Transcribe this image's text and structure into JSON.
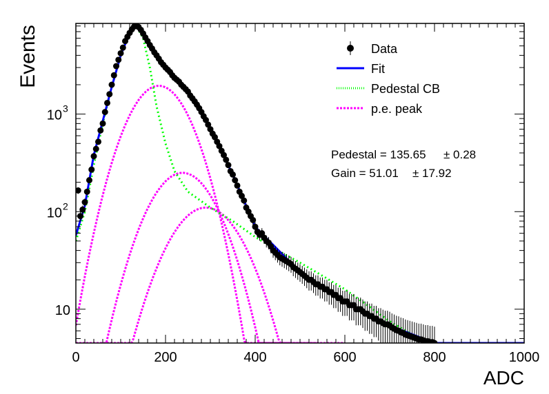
{
  "chart_data": {
    "type": "scatter",
    "title": "",
    "xlabel": "ADC",
    "ylabel": "Events",
    "xlim": [
      0,
      1000
    ],
    "ylim": [
      4.5,
      8500
    ],
    "y_scale": "log",
    "grid": false,
    "x_ticks": [
      {
        "value": 0,
        "label": "0"
      },
      {
        "value": 200,
        "label": "200"
      },
      {
        "value": 400,
        "label": "400"
      },
      {
        "value": 600,
        "label": "600"
      },
      {
        "value": 800,
        "label": "800"
      },
      {
        "value": 1000,
        "label": "1000"
      }
    ],
    "y_ticks": [
      {
        "value": 10,
        "label": "10"
      },
      {
        "value": 100,
        "label": "10",
        "exponent": "2"
      },
      {
        "value": 1000,
        "label": "10",
        "exponent": "3"
      }
    ],
    "legend": {
      "position": "top-right",
      "entries": [
        {
          "label": "Data",
          "kind": "marker"
        },
        {
          "label": "Fit",
          "kind": "solid"
        },
        {
          "label": "Pedestal CB",
          "kind": "dotted"
        },
        {
          "label": "p.e. peak",
          "kind": "dashed"
        }
      ]
    },
    "annotations": [
      "Pedestal = 135.65",
      "± 0.28",
      "Gain = 51.01",
      "± 17.92"
    ],
    "colors": {
      "data": "#000000",
      "fit": "#0000ff",
      "pedestal": "#00ff00",
      "pe": "#ff00ff",
      "frame": "#000000"
    },
    "series": [
      {
        "name": "Data",
        "points": [
          [
            5,
            165
          ],
          [
            10,
            90
          ],
          [
            15,
            105
          ],
          [
            20,
            125
          ],
          [
            25,
            160
          ],
          [
            30,
            210
          ],
          [
            35,
            270
          ],
          [
            40,
            370
          ],
          [
            45,
            440
          ],
          [
            50,
            520
          ],
          [
            55,
            680
          ],
          [
            60,
            800
          ],
          [
            65,
            1050
          ],
          [
            70,
            1300
          ],
          [
            75,
            1600
          ],
          [
            80,
            2000
          ],
          [
            85,
            2500
          ],
          [
            90,
            3100
          ],
          [
            95,
            3600
          ],
          [
            100,
            4200
          ],
          [
            105,
            4800
          ],
          [
            110,
            5600
          ],
          [
            115,
            6200
          ],
          [
            120,
            6800
          ],
          [
            125,
            7400
          ],
          [
            130,
            7900
          ],
          [
            135,
            8000
          ],
          [
            140,
            7800
          ],
          [
            145,
            7300
          ],
          [
            150,
            6700
          ],
          [
            155,
            6100
          ],
          [
            160,
            5600
          ],
          [
            165,
            5100
          ],
          [
            170,
            4700
          ],
          [
            175,
            4300
          ],
          [
            180,
            4000
          ],
          [
            185,
            3700
          ],
          [
            190,
            3400
          ],
          [
            195,
            3200
          ],
          [
            200,
            3000
          ],
          [
            205,
            2850
          ],
          [
            210,
            2700
          ],
          [
            215,
            2500
          ],
          [
            220,
            2350
          ],
          [
            225,
            2250
          ],
          [
            230,
            2150
          ],
          [
            235,
            2000
          ],
          [
            240,
            1900
          ],
          [
            245,
            1800
          ],
          [
            250,
            1700
          ],
          [
            255,
            1550
          ],
          [
            260,
            1450
          ],
          [
            265,
            1350
          ],
          [
            270,
            1250
          ],
          [
            275,
            1150
          ],
          [
            280,
            1050
          ],
          [
            285,
            950
          ],
          [
            290,
            870
          ],
          [
            295,
            780
          ],
          [
            300,
            700
          ],
          [
            305,
            630
          ],
          [
            310,
            580
          ],
          [
            315,
            520
          ],
          [
            320,
            470
          ],
          [
            325,
            420
          ],
          [
            330,
            380
          ],
          [
            335,
            340
          ],
          [
            340,
            300
          ],
          [
            345,
            260
          ],
          [
            350,
            240
          ],
          [
            355,
            210
          ],
          [
            360,
            185
          ],
          [
            365,
            160
          ],
          [
            370,
            145
          ],
          [
            375,
            130
          ],
          [
            380,
            110
          ],
          [
            385,
            100
          ],
          [
            390,
            90
          ],
          [
            395,
            82
          ],
          [
            400,
            70
          ],
          [
            405,
            62
          ],
          [
            410,
            58
          ],
          [
            415,
            60
          ],
          [
            420,
            54
          ],
          [
            425,
            50
          ],
          [
            430,
            48
          ],
          [
            435,
            44
          ],
          [
            440,
            40
          ],
          [
            445,
            38
          ],
          [
            450,
            36
          ],
          [
            455,
            34
          ],
          [
            460,
            33
          ],
          [
            465,
            32
          ],
          [
            470,
            31
          ],
          [
            475,
            30
          ],
          [
            480,
            29
          ],
          [
            485,
            27
          ],
          [
            490,
            26
          ],
          [
            495,
            25
          ],
          [
            500,
            24
          ],
          [
            505,
            23
          ],
          [
            510,
            22
          ],
          [
            515,
            21
          ],
          [
            520,
            20
          ],
          [
            525,
            20
          ],
          [
            530,
            19
          ],
          [
            535,
            18
          ],
          [
            540,
            18
          ],
          [
            545,
            17
          ],
          [
            550,
            17
          ],
          [
            555,
            16
          ],
          [
            560,
            16
          ],
          [
            565,
            15
          ],
          [
            570,
            15
          ],
          [
            575,
            14
          ],
          [
            580,
            14
          ],
          [
            585,
            13
          ],
          [
            590,
            13
          ],
          [
            595,
            12
          ],
          [
            600,
            12
          ],
          [
            605,
            12
          ],
          [
            610,
            11
          ],
          [
            615,
            11
          ],
          [
            620,
            11
          ],
          [
            625,
            10
          ],
          [
            630,
            10
          ],
          [
            635,
            10
          ],
          [
            640,
            9.5
          ],
          [
            645,
            9
          ],
          [
            650,
            9
          ],
          [
            655,
            8.5
          ],
          [
            660,
            8.5
          ],
          [
            665,
            8
          ],
          [
            670,
            8
          ],
          [
            675,
            7.5
          ],
          [
            680,
            7.5
          ],
          [
            685,
            7.2
          ],
          [
            690,
            7
          ],
          [
            695,
            7
          ],
          [
            700,
            6.8
          ],
          [
            705,
            6.5
          ],
          [
            710,
            6.3
          ],
          [
            715,
            6.1
          ],
          [
            720,
            6
          ],
          [
            725,
            5.8
          ],
          [
            730,
            5.7
          ],
          [
            735,
            5.5
          ],
          [
            740,
            5.4
          ],
          [
            745,
            5.3
          ],
          [
            750,
            5.2
          ],
          [
            755,
            5.1
          ],
          [
            760,
            5
          ],
          [
            765,
            4.9
          ],
          [
            770,
            4.9
          ],
          [
            775,
            4.8
          ],
          [
            780,
            4.7
          ],
          [
            785,
            4.7
          ],
          [
            790,
            4.6
          ],
          [
            795,
            4.6
          ],
          [
            800,
            4.5
          ]
        ]
      },
      {
        "name": "Fit",
        "points": [
          [
            0,
            57
          ],
          [
            20,
            115
          ],
          [
            40,
            380
          ],
          [
            60,
            850
          ],
          [
            80,
            1900
          ],
          [
            100,
            4000
          ],
          [
            120,
            6800
          ],
          [
            135,
            8000
          ],
          [
            150,
            6700
          ],
          [
            175,
            4300
          ],
          [
            200,
            3000
          ],
          [
            250,
            1700
          ],
          [
            300,
            700
          ],
          [
            350,
            240
          ],
          [
            400,
            70
          ],
          [
            500,
            24
          ],
          [
            600,
            12
          ],
          [
            700,
            6.8
          ],
          [
            800,
            4.5
          ],
          [
            900,
            4.0
          ],
          [
            1000,
            4.3
          ]
        ]
      },
      {
        "name": "Pedestal CB",
        "points": [
          [
            0,
            50
          ],
          [
            20,
            100
          ],
          [
            40,
            300
          ],
          [
            60,
            800
          ],
          [
            80,
            1900
          ],
          [
            100,
            4000
          ],
          [
            120,
            7000
          ],
          [
            135,
            8000
          ],
          [
            150,
            6000
          ],
          [
            165,
            3000
          ],
          [
            180,
            1200
          ],
          [
            200,
            500
          ],
          [
            220,
            260
          ],
          [
            250,
            160
          ],
          [
            300,
            110
          ],
          [
            350,
            80
          ],
          [
            400,
            55
          ],
          [
            450,
            40
          ],
          [
            500,
            30
          ],
          [
            550,
            22
          ],
          [
            600,
            16
          ],
          [
            650,
            11
          ],
          [
            700,
            7.5
          ],
          [
            750,
            5.5
          ],
          [
            800,
            4.5
          ]
        ]
      },
      {
        "name": "p.e. peak",
        "curves": [
          {
            "mu": 185,
            "sigma": 55,
            "amp": 1950
          },
          {
            "mu": 238,
            "sigma": 60,
            "amp": 250
          },
          {
            "mu": 290,
            "sigma": 65,
            "amp": 110
          }
        ]
      }
    ]
  }
}
